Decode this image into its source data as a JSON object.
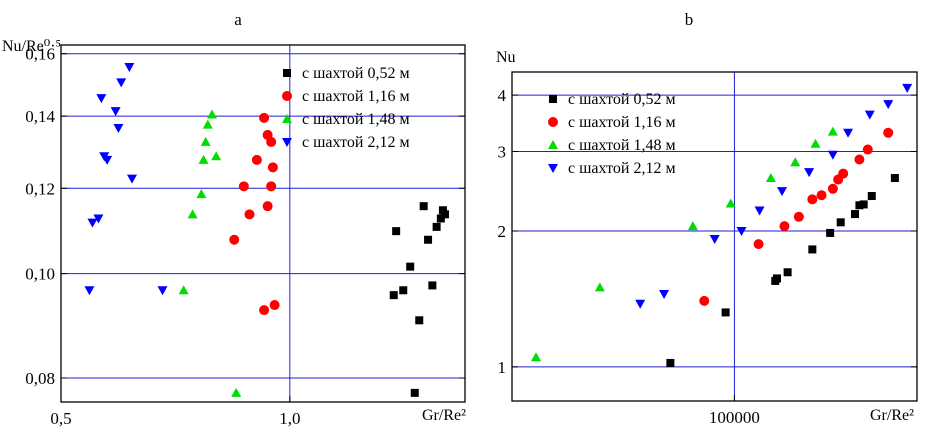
{
  "chart_data": [
    {
      "panel_label": "a",
      "type": "scatter",
      "title": "",
      "xlabel": "Gr/Re²",
      "ylabel": "Nu/Re⁰·⁵",
      "x_scale": "log",
      "y_scale": "log",
      "xlim": [
        0.5,
        1.7
      ],
      "ylim": [
        0.076,
        0.163
      ],
      "x_ticks": [
        {
          "value": 0.5,
          "label": "0,5"
        },
        {
          "value": 1.0,
          "label": "1,0"
        }
      ],
      "y_ticks": [
        {
          "value": 0.08,
          "label": "0,08"
        },
        {
          "value": 0.1,
          "label": "0,10"
        },
        {
          "value": 0.12,
          "label": "0,12"
        },
        {
          "value": 0.14,
          "label": "0,14"
        },
        {
          "value": 0.16,
          "label": "0,16"
        }
      ],
      "grid": true,
      "legend_position": "top-right",
      "series": [
        {
          "name": "с шахтой 0,52 м",
          "marker": "square",
          "color": "#000000",
          "x": [
            1.37,
            1.41,
            1.48,
            1.5,
            1.56,
            1.6,
            1.38,
            1.52,
            1.44,
            1.54,
            1.46,
            1.58,
            1.59
          ],
          "y": [
            0.0955,
            0.0965,
            0.0905,
            0.1155,
            0.1105,
            0.1135,
            0.1095,
            0.1075,
            0.1015,
            0.0975,
            0.0775,
            0.1125,
            0.1145
          ]
        },
        {
          "name": "с шахтой 1,16 м",
          "marker": "circle",
          "color": "#ff0000",
          "x": [
            0.845,
            0.87,
            0.885,
            0.905,
            0.925,
            0.935,
            0.945,
            0.95,
            0.945,
            0.935,
            0.925,
            0.955
          ],
          "y": [
            0.1075,
            0.1205,
            0.1135,
            0.1275,
            0.1395,
            0.1345,
            0.1325,
            0.1255,
            0.1205,
            0.1155,
            0.0925,
            0.0935
          ]
        },
        {
          "name": "с шахтой 1,48 м",
          "marker": "triangle-up",
          "color": "#00dd00",
          "x": [
            0.725,
            0.745,
            0.765,
            0.77,
            0.775,
            0.78,
            0.79,
            0.8,
            0.85
          ],
          "y": [
            0.0965,
            0.1135,
            0.1185,
            0.1275,
            0.1325,
            0.1375,
            0.1405,
            0.1285,
            0.0775
          ]
        },
        {
          "name": "с шахтой 2,12 м",
          "marker": "triangle-down",
          "color": "#0000ff",
          "x": [
            0.545,
            0.55,
            0.56,
            0.565,
            0.57,
            0.575,
            0.59,
            0.595,
            0.6,
            0.615,
            0.62,
            0.68
          ],
          "y": [
            0.0965,
            0.1115,
            0.1125,
            0.1455,
            0.1285,
            0.1275,
            0.1415,
            0.1365,
            0.1505,
            0.1555,
            0.1225,
            0.0965
          ]
        }
      ]
    },
    {
      "panel_label": "b",
      "type": "scatter",
      "title": "",
      "xlabel": "Gr/Re²",
      "ylabel": "Nu",
      "x_scale": "log",
      "y_scale": "log",
      "xlim": [
        16000,
        450000
      ],
      "ylim": [
        0.84,
        4.5
      ],
      "x_ticks": [
        {
          "value": 100000,
          "label": "100000"
        }
      ],
      "y_ticks": [
        {
          "value": 1,
          "label": "1"
        },
        {
          "value": 2,
          "label": "2"
        },
        {
          "value": 3,
          "label": "3"
        },
        {
          "value": 4,
          "label": "4"
        }
      ],
      "grid": true,
      "legend_position": "top-left",
      "series": [
        {
          "name": "с шахтой 0,52 м",
          "marker": "square",
          "color": "#000000",
          "x": [
            59000,
            93000,
            140000,
            142000,
            155000,
            190000,
            220000,
            240000,
            270000,
            280000,
            290000,
            310000,
            375000
          ],
          "y": [
            1.02,
            1.32,
            1.55,
            1.57,
            1.62,
            1.82,
            1.98,
            2.09,
            2.18,
            2.28,
            2.29,
            2.39,
            2.62
          ]
        },
        {
          "name": "с шахтой 1,16 м",
          "marker": "circle",
          "color": "#ff0000",
          "x": [
            78000,
            122000,
            151000,
            170000,
            190000,
            205000,
            225000,
            235000,
            245000,
            280000,
            300000,
            355000
          ],
          "y": [
            1.4,
            1.87,
            2.05,
            2.15,
            2.35,
            2.4,
            2.48,
            2.6,
            2.68,
            2.88,
            3.03,
            3.3
          ]
        },
        {
          "name": "с шахтой 1,48 м",
          "marker": "triangle-up",
          "color": "#00dd00",
          "x": [
            19500,
            33000,
            71000,
            97000,
            135000,
            165000,
            195000,
            225000
          ],
          "y": [
            1.05,
            1.5,
            2.05,
            2.3,
            2.62,
            2.84,
            3.12,
            3.32
          ]
        },
        {
          "name": "с шахтой 2,12 м",
          "marker": "triangle-down",
          "color": "#0000ff",
          "x": [
            46000,
            56000,
            85000,
            106000,
            123000,
            148000,
            185000,
            225000,
            255000,
            305000,
            355000,
            415000
          ],
          "y": [
            1.38,
            1.45,
            1.92,
            2.0,
            2.22,
            2.45,
            2.7,
            2.95,
            3.3,
            3.62,
            3.82,
            4.15
          ]
        }
      ]
    }
  ]
}
